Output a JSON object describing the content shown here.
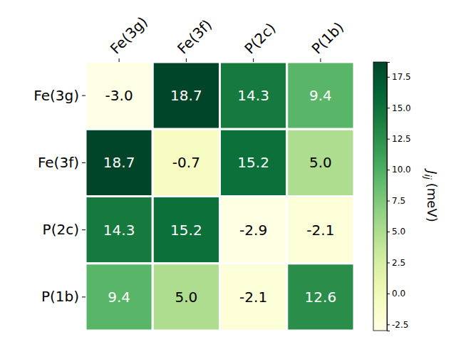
{
  "chart_data": {
    "type": "heatmap",
    "x_categories": [
      "Fe(3g)",
      "Fe(3f)",
      "P(2c)",
      "P(1b)"
    ],
    "y_categories": [
      "Fe(3g)",
      "Fe(3f)",
      "P(2c)",
      "P(1b)"
    ],
    "cells": [
      [
        -3.0,
        18.7,
        14.3,
        9.4
      ],
      [
        18.7,
        -0.7,
        15.2,
        5.0
      ],
      [
        14.3,
        15.2,
        -2.9,
        -2.1
      ],
      [
        9.4,
        5.0,
        -2.1,
        12.6
      ]
    ],
    "value_labels": [
      [
        "-3.0",
        "18.7",
        "14.3",
        "9.4"
      ],
      [
        "18.7",
        "-0.7",
        "15.2",
        "5.0"
      ],
      [
        "14.3",
        "15.2",
        "-2.9",
        "-2.1"
      ],
      [
        "9.4",
        "5.0",
        "-2.1",
        "12.6"
      ]
    ],
    "data_labels": true,
    "color": "YlGn",
    "colorbar": {
      "label": "J",
      "label_subscript": "ij",
      "label_unit": "(meV)",
      "range": [
        -3.0,
        18.7
      ],
      "ticks": [
        -2.5,
        {
          "value": 0,
          "label": "0.0"
        },
        2.5,
        {
          "value": 5,
          "label": "5.0"
        },
        7.5,
        {
          "value": 10,
          "label": "10.0"
        },
        12.5,
        {
          "value": 15,
          "label": "15.0"
        },
        17.5
      ]
    }
  }
}
